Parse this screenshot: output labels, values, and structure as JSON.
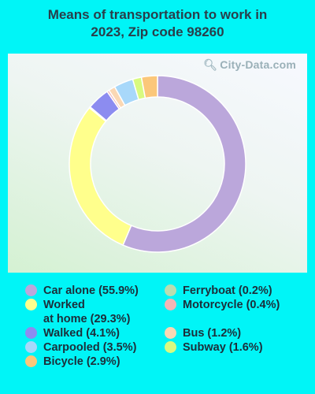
{
  "page": {
    "title": "Means of transportation to work in\n2023, Zip code 98260",
    "watermark": "City-Data.com"
  },
  "chart_data": {
    "type": "pie",
    "variant": "donut",
    "title": "Means of transportation to work in 2023, Zip code 98260",
    "slices": [
      {
        "label": "Car alone",
        "legend": "Car alone (55.9%)",
        "value": 55.9,
        "color": "#bba7db"
      },
      {
        "label": "Worked at home",
        "legend": "Worked\nat home (29.3%)",
        "value": 29.3,
        "color": "#ffff8c"
      },
      {
        "label": "Ferryboat",
        "legend": "Ferryboat (0.2%)",
        "value": 0.2,
        "color": "#b9ddb0"
      },
      {
        "label": "Walked",
        "legend": "Walked (4.1%)",
        "value": 4.1,
        "color": "#8c8cf0"
      },
      {
        "label": "Motorcycle",
        "legend": "Motorcycle (0.4%)",
        "value": 0.4,
        "color": "#f2b5b5"
      },
      {
        "label": "Bus",
        "legend": "Bus (1.2%)",
        "value": 1.2,
        "color": "#fad8b4"
      },
      {
        "label": "Carpooled",
        "legend": "Carpooled (3.5%)",
        "value": 3.5,
        "color": "#a8d8fa"
      },
      {
        "label": "Subway",
        "legend": "Subway (1.6%)",
        "value": 1.6,
        "color": "#d8fa80"
      },
      {
        "label": "Bicycle",
        "legend": "Bicycle (2.9%)",
        "value": 2.9,
        "color": "#fbc77a"
      }
    ],
    "legend_columns": [
      [
        "Car alone",
        "Worked at home",
        "Walked",
        "Carpooled",
        "Bicycle"
      ],
      [
        "Ferryboat",
        "Motorcycle",
        "Bus",
        "Subway"
      ]
    ]
  }
}
